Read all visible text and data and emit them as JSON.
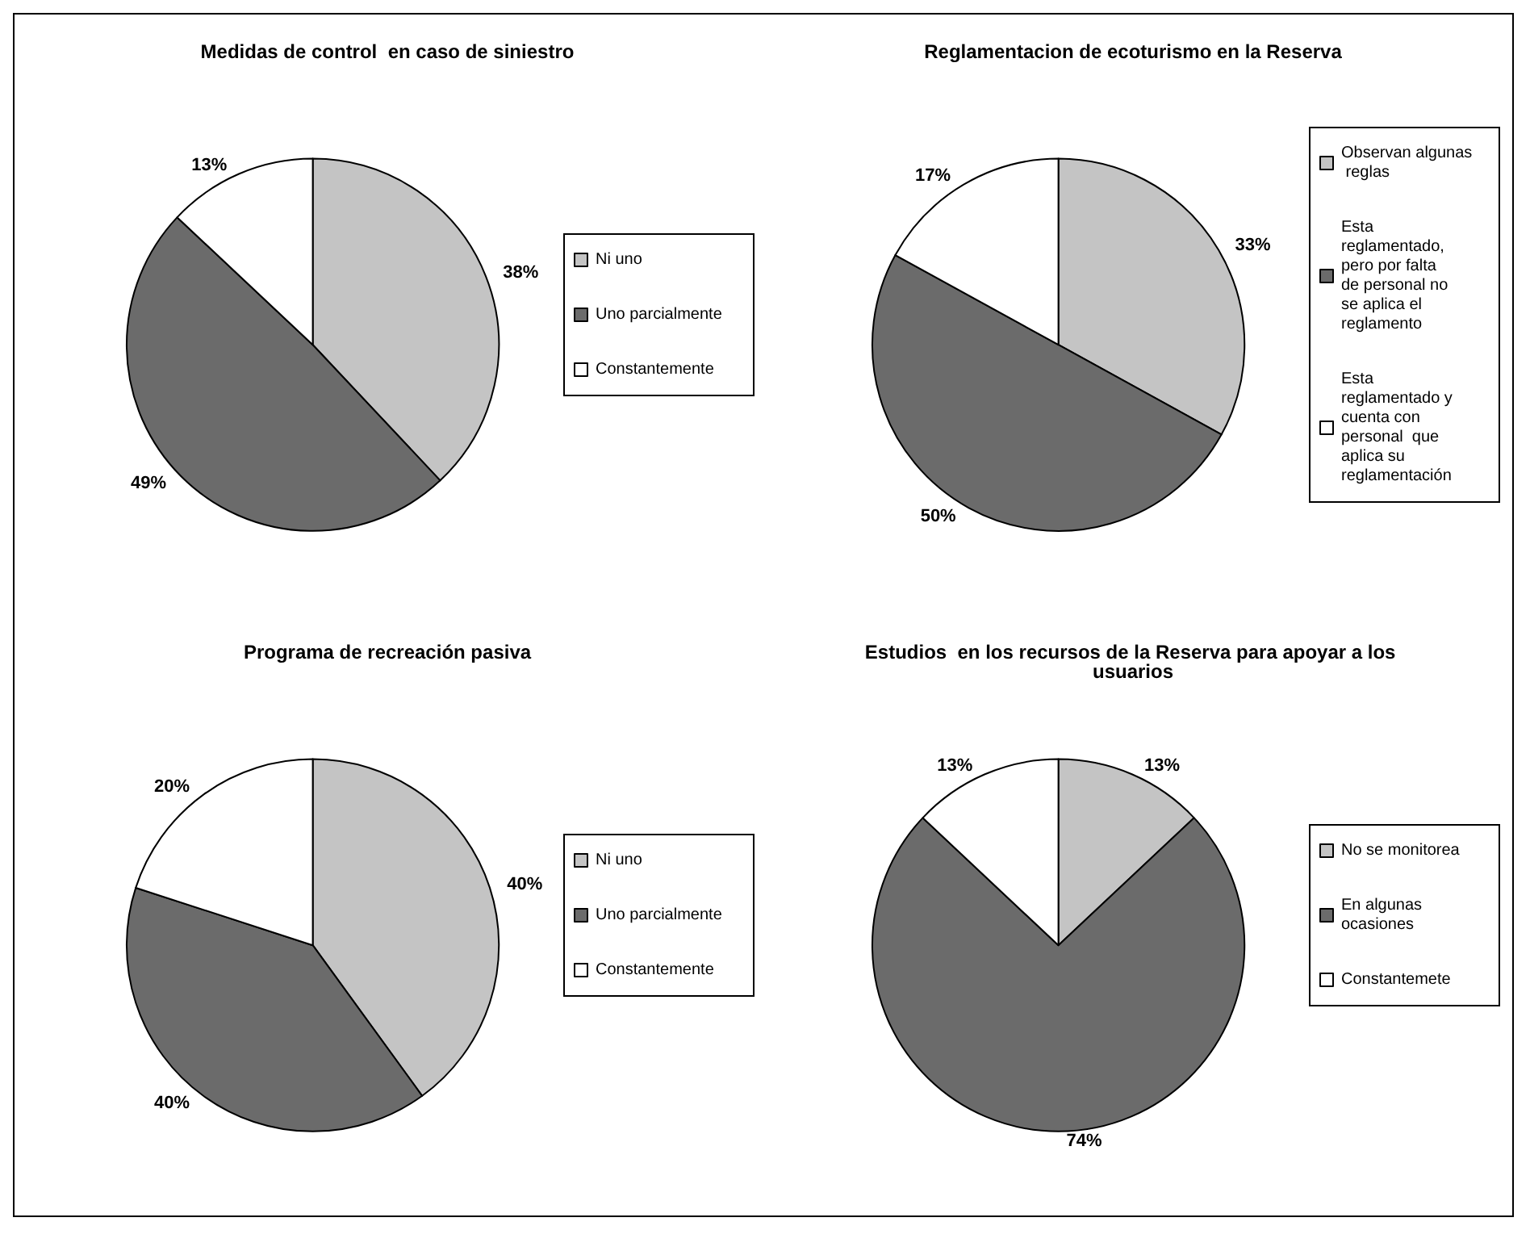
{
  "chart_data": [
    {
      "type": "pie",
      "title": "Medidas de control  en caso de siniestro",
      "categories": [
        "Ni uno",
        "Uno parcialmente",
        "Constantemente"
      ],
      "values": [
        38,
        49,
        13
      ],
      "colors": [
        "#c4c4c4",
        "#6b6b6b",
        "#ffffff"
      ],
      "value_labels": [
        "38%",
        "49%",
        "13%"
      ],
      "legend": "right"
    },
    {
      "type": "pie",
      "title": "Reglamentacion de ecoturismo en la Reserva",
      "categories": [
        "Observan algunas reglas",
        "Esta reglamentado, pero por falta de personal no se aplica el reglamento",
        "Esta reglamentado y cuenta con personal  que aplica su reglamentación"
      ],
      "values": [
        33,
        50,
        17
      ],
      "colors": [
        "#c4c4c4",
        "#6b6b6b",
        "#ffffff"
      ],
      "value_labels": [
        "33%",
        "50%",
        "17%"
      ],
      "legend": "right"
    },
    {
      "type": "pie",
      "title": "Programa de recreación pasiva",
      "categories": [
        "Ni uno",
        "Uno parcialmente",
        "Constantemente"
      ],
      "values": [
        40,
        40,
        20
      ],
      "colors": [
        "#c4c4c4",
        "#6b6b6b",
        "#ffffff"
      ],
      "value_labels": [
        "40%",
        "40%",
        "20%"
      ],
      "legend": "right"
    },
    {
      "type": "pie",
      "title": "Estudios  en los recursos de la Reserva para apoyar a los usuarios",
      "categories": [
        "No se monitorea",
        "En algunas ocasiones",
        "Constantemete"
      ],
      "values": [
        13,
        74,
        13
      ],
      "colors": [
        "#c4c4c4",
        "#6b6b6b",
        "#ffffff"
      ],
      "value_labels": [
        "13%",
        "74%",
        "13%"
      ],
      "legend": "right"
    }
  ]
}
